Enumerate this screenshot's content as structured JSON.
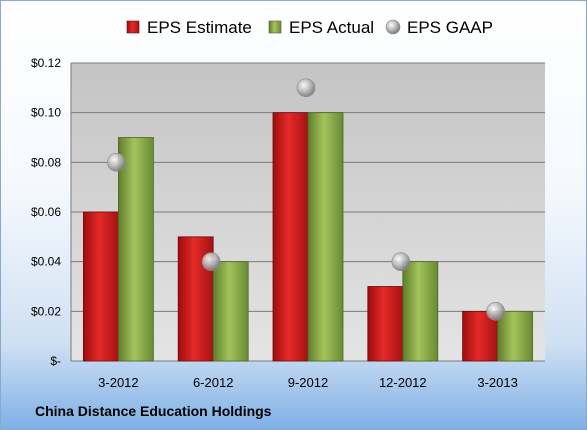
{
  "company": "China Distance Education Holdings",
  "chart_data": {
    "type": "bar",
    "categories": [
      "3-2012",
      "6-2012",
      "9-2012",
      "12-2012",
      "3-2013"
    ],
    "series": [
      {
        "name": "EPS Estimate",
        "kind": "bar",
        "color": "#d42020",
        "values": [
          0.06,
          0.05,
          0.1,
          0.03,
          0.02
        ]
      },
      {
        "name": "EPS Actual",
        "kind": "bar",
        "color": "#8fb04a",
        "values": [
          0.09,
          0.04,
          0.1,
          0.04,
          0.02
        ]
      },
      {
        "name": "EPS GAAP",
        "kind": "scatter",
        "color": "#a8a8a8",
        "values": [
          0.08,
          0.04,
          0.11,
          0.04,
          0.02
        ]
      }
    ],
    "y_ticks": [
      {
        "value": 0,
        "label": "$-"
      },
      {
        "value": 0.02,
        "label": "$0.02"
      },
      {
        "value": 0.04,
        "label": "$0.04"
      },
      {
        "value": 0.06,
        "label": "$0.06"
      },
      {
        "value": 0.08,
        "label": "$0.08"
      },
      {
        "value": 0.1,
        "label": "$0.10"
      },
      {
        "value": 0.12,
        "label": "$0.12"
      }
    ],
    "ylim": [
      0,
      0.12
    ],
    "grid": true,
    "legend_position": "top"
  }
}
